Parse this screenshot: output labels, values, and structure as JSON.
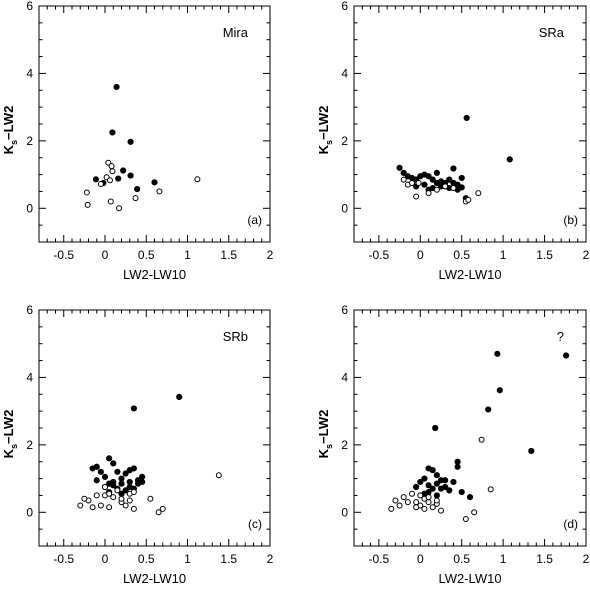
{
  "figure": {
    "x_label": "LW2-LW10",
    "y_label_main": "K",
    "y_label_sub": "s",
    "y_label_rest": "−LW2"
  },
  "colors": {
    "filled": "#000000",
    "open": "#000000",
    "background": "#ffffff"
  },
  "chart_data": [
    {
      "type": "scatter",
      "panel_name": "Mira",
      "panel_tag": "(a)",
      "xlabel": "LW2-LW10",
      "ylabel": "Ks−LW2",
      "xlim": [
        -0.8,
        2.0
      ],
      "ylim": [
        -1,
        6
      ],
      "xticks": [
        "-0.5",
        "0",
        "0.5",
        "1",
        "1.5",
        "2"
      ],
      "yticks": [
        "0",
        "2",
        "4",
        "6"
      ],
      "series": [
        {
          "marker": "filled",
          "x": [
            0.14,
            0.09,
            0.31,
            -0.11,
            -0.02,
            0.16,
            0.22,
            0.31,
            0.39,
            0.6
          ],
          "y": [
            3.6,
            2.25,
            1.97,
            0.86,
            0.75,
            0.88,
            1.12,
            0.97,
            0.57,
            0.77
          ]
        },
        {
          "marker": "open",
          "x": [
            0.04,
            0.08,
            0.09,
            -0.05,
            0.02,
            0.06,
            -0.22,
            -0.21,
            0.07,
            0.17,
            0.37,
            0.66,
            1.12
          ],
          "y": [
            1.35,
            1.25,
            1.1,
            0.72,
            0.92,
            0.83,
            0.47,
            0.1,
            0.2,
            0.0,
            0.3,
            0.5,
            0.86
          ]
        }
      ]
    },
    {
      "type": "scatter",
      "panel_name": "SRa",
      "panel_tag": "(b)",
      "xlabel": "LW2-LW10",
      "ylabel": "Ks−LW2",
      "xlim": [
        -0.8,
        2.0
      ],
      "ylim": [
        -1,
        6
      ],
      "xticks": [
        "-0.5",
        "0",
        "0.5",
        "1",
        "1.5",
        "2"
      ],
      "yticks": [
        "0",
        "2",
        "4",
        "6"
      ],
      "series": [
        {
          "marker": "filled",
          "x": [
            0.56,
            1.08,
            -0.25,
            -0.2,
            -0.15,
            -0.1,
            -0.05,
            0.05,
            0.1,
            0.15,
            0.2,
            0.25,
            0.3,
            0.35,
            0.4,
            0.45,
            0.5,
            -0.05,
            0.05,
            0.15,
            0.25,
            0.35,
            0.45,
            0.55,
            0.0,
            0.2,
            0.3,
            0.4,
            0.1,
            0.5
          ],
          "y": [
            2.68,
            1.45,
            1.2,
            1.05,
            0.95,
            0.9,
            0.85,
            1.0,
            0.95,
            0.85,
            1.05,
            0.8,
            0.75,
            0.85,
            0.75,
            0.7,
            0.62,
            0.65,
            0.7,
            0.6,
            0.65,
            0.6,
            0.55,
            0.3,
            0.95,
            0.75,
            0.65,
            1.18,
            0.55,
            0.9
          ]
        },
        {
          "marker": "open",
          "x": [
            -0.2,
            -0.15,
            -0.1,
            -0.02,
            -0.05,
            0.1,
            0.2,
            0.3,
            0.4,
            0.55,
            0.58,
            0.7
          ],
          "y": [
            0.85,
            0.7,
            0.75,
            0.75,
            0.35,
            0.45,
            0.55,
            0.65,
            0.6,
            0.2,
            0.25,
            0.45
          ]
        }
      ]
    },
    {
      "type": "scatter",
      "panel_name": "SRb",
      "panel_tag": "(c)",
      "xlabel": "LW2-LW10",
      "ylabel": "Ks−LW2",
      "xlim": [
        -0.8,
        2.0
      ],
      "ylim": [
        -1,
        6
      ],
      "xticks": [
        "-0.5",
        "0",
        "0.5",
        "1",
        "1.5",
        "2"
      ],
      "yticks": [
        "0",
        "2",
        "4",
        "6"
      ],
      "series": [
        {
          "marker": "filled",
          "x": [
            0.9,
            0.35,
            -0.15,
            -0.1,
            -0.05,
            0.0,
            0.05,
            0.1,
            0.15,
            0.2,
            0.25,
            0.3,
            0.35,
            0.4,
            0.45,
            0.05,
            0.1,
            0.2,
            0.3,
            -0.1,
            0.0,
            0.15,
            0.25,
            0.35,
            0.1,
            0.2,
            0.3,
            0.05,
            0.4,
            0.45
          ],
          "y": [
            3.42,
            3.08,
            1.3,
            1.35,
            1.2,
            1.05,
            1.6,
            1.45,
            1.2,
            1.0,
            1.15,
            1.25,
            1.3,
            0.95,
            1.05,
            0.85,
            0.8,
            0.85,
            0.9,
            0.95,
            0.75,
            0.7,
            0.65,
            0.7,
            0.9,
            0.55,
            0.75,
            0.6,
            0.85,
            0.9
          ]
        },
        {
          "marker": "open",
          "x": [
            1.38,
            -0.3,
            -0.2,
            -0.15,
            -0.05,
            0.0,
            0.05,
            0.1,
            0.2,
            0.25,
            0.3,
            0.35,
            0.55,
            0.65,
            0.7,
            -0.1,
            0.0,
            0.15,
            0.3,
            -0.25,
            0.05,
            0.2,
            0.35
          ],
          "y": [
            1.1,
            0.2,
            0.35,
            0.15,
            0.2,
            0.5,
            0.55,
            0.45,
            0.3,
            0.2,
            0.35,
            0.1,
            0.4,
            0.0,
            0.1,
            0.5,
            0.75,
            0.65,
            0.55,
            0.4,
            0.15,
            0.4,
            0.6
          ]
        }
      ]
    },
    {
      "type": "scatter",
      "panel_name": "?",
      "panel_tag": "(d)",
      "xlabel": "LW2-LW10",
      "ylabel": "Ks−LW2",
      "xlim": [
        -0.8,
        2.0
      ],
      "ylim": [
        -1,
        6
      ],
      "xticks": [
        "-0.5",
        "0",
        "0.5",
        "1",
        "1.5",
        "2"
      ],
      "yticks": [
        "0",
        "2",
        "4",
        "6"
      ],
      "series": [
        {
          "marker": "filled",
          "x": [
            0.93,
            1.76,
            0.96,
            0.82,
            1.34,
            0.18,
            0.45,
            0.45,
            0.1,
            0.15,
            0.2,
            0.25,
            0.05,
            0.0,
            -0.05,
            0.1,
            0.15,
            0.2,
            0.3,
            0.35,
            0.4,
            0.5,
            0.6,
            0.05,
            0.2,
            0.25,
            0.1,
            0.3
          ],
          "y": [
            4.7,
            4.65,
            3.62,
            3.05,
            1.82,
            2.5,
            1.5,
            1.35,
            1.3,
            1.25,
            1.1,
            0.95,
            1.0,
            0.9,
            0.75,
            0.8,
            0.7,
            0.85,
            0.75,
            0.65,
            0.9,
            0.6,
            0.45,
            0.55,
            0.5,
            0.7,
            0.6,
            0.95
          ]
        },
        {
          "marker": "open",
          "x": [
            0.74,
            0.85,
            -0.35,
            -0.3,
            -0.2,
            -0.1,
            -0.05,
            0.0,
            0.05,
            0.1,
            0.15,
            0.2,
            0.25,
            0.55,
            0.65,
            -0.15,
            -0.05,
            0.0,
            0.1,
            0.2,
            -0.25,
            0.05
          ],
          "y": [
            2.15,
            0.68,
            0.1,
            0.35,
            0.45,
            0.55,
            0.3,
            0.2,
            0.4,
            0.3,
            0.15,
            0.25,
            0.05,
            -0.2,
            0.0,
            0.3,
            0.15,
            0.5,
            0.45,
            0.35,
            0.2,
            0.1
          ]
        }
      ]
    }
  ]
}
